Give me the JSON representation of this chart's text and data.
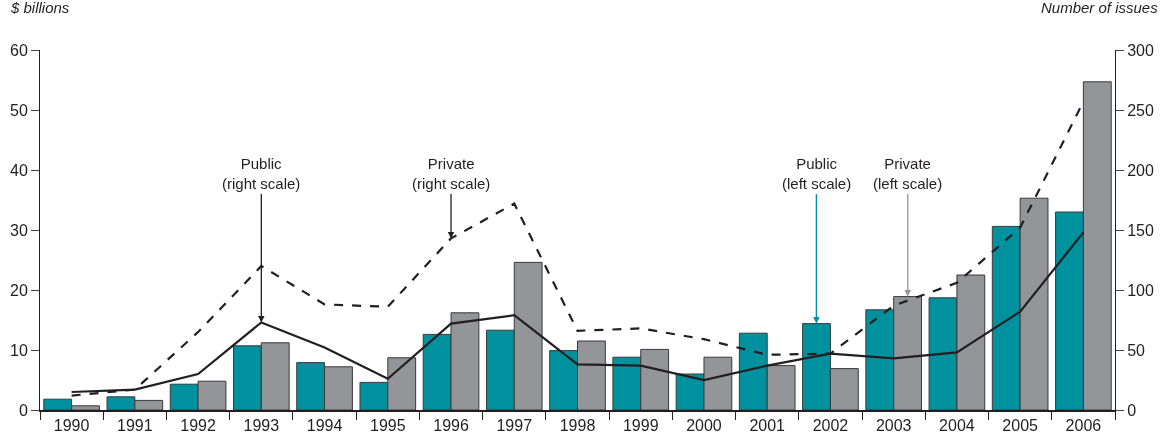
{
  "chart_data": {
    "type": "bar",
    "ylabel": "$ billions",
    "y2label": "Number of issues",
    "categories": [
      "1990",
      "1991",
      "1992",
      "1993",
      "1994",
      "1995",
      "1996",
      "1997",
      "1998",
      "1999",
      "2000",
      "2001",
      "2002",
      "2003",
      "2004",
      "2005",
      "2006"
    ],
    "series": [
      {
        "color": "#00919e",
        "values": [
          1.8,
          2.2,
          4.3,
          10.7,
          7.9,
          4.6,
          12.6,
          13.3,
          9.9,
          8.8,
          6.0,
          12.8,
          14.4,
          16.7,
          18.7,
          30.6,
          33.0
        ]
      },
      {
        "color": "#939598",
        "values": [
          0.7,
          1.6,
          4.8,
          11.2,
          7.2,
          8.7,
          16.2,
          24.6,
          11.5,
          10.1,
          8.8,
          7.4,
          6.9,
          18.9,
          22.5,
          35.3,
          54.7
        ]
      },
      {
        "type": "line",
        "axis": "y2",
        "color": "#231f20",
        "line_style": "solid",
        "values": [
          15,
          17,
          30,
          73,
          52,
          26,
          72,
          79,
          38,
          37,
          25,
          37,
          47,
          43,
          48,
          82,
          148
        ]
      },
      {
        "type": "line",
        "axis": "y2",
        "color": "#231f20",
        "line_style": "dashed",
        "values": [
          12,
          17,
          65,
          120,
          88,
          86,
          143,
          172,
          66,
          68,
          59,
          46,
          47,
          87,
          106,
          152,
          257
        ]
      }
    ],
    "ylim": [
      0,
      60
    ],
    "yticks": [
      0,
      10,
      20,
      30,
      40,
      50,
      60
    ],
    "y2lim": [
      0,
      300
    ],
    "y2ticks": [
      0,
      50,
      100,
      150,
      200,
      250,
      300
    ],
    "grid": false,
    "legend": false,
    "marker": "none",
    "annotations": [
      {
        "text": "Public\n(right scale)",
        "x": "1993",
        "y": 14.6
      },
      {
        "text": "Private\n(right scale)",
        "x": "1996",
        "y": 28.6
      },
      {
        "text": "Public\n(left scale)",
        "y": 14.4
      },
      {
        "text": "Private\n(left scale)",
        "y": 18.9
      }
    ]
  }
}
